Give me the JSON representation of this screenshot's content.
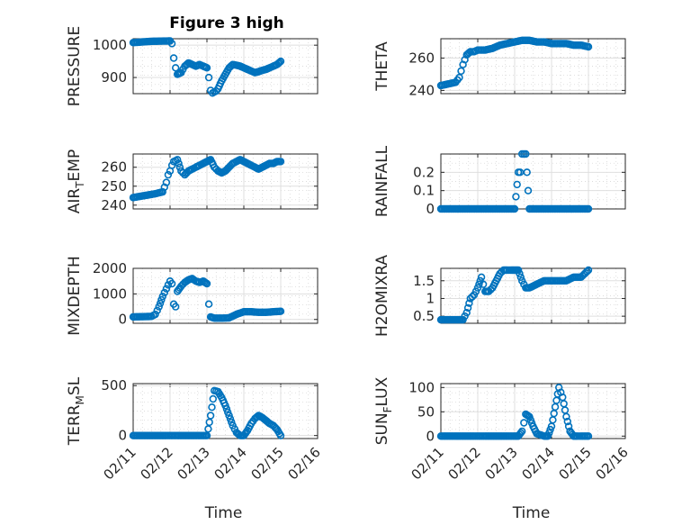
{
  "figure_title": "Figure 3 high",
  "colors": {
    "marker": "#0072bd",
    "axes": "#262626",
    "grid": "#dfdfdf"
  },
  "chart_data": [
    {
      "id": "pressure",
      "type": "scatter",
      "marker": "circle",
      "title": "Figure 3 high",
      "ylabel": "PRESSURE",
      "ylabel_sub": "",
      "xlabel": "",
      "xlim": [
        "02/11",
        "02/15"
      ],
      "ylim": [
        850,
        1020
      ],
      "yticks": [
        900,
        1000
      ],
      "ytick_labels": [
        "900",
        "1000"
      ],
      "xtick_labels": [],
      "grid": true,
      "x_days": [
        0,
        0.5,
        1.0,
        1.05,
        1.1,
        1.15,
        1.2,
        1.3,
        1.4,
        1.5,
        1.6,
        1.7,
        1.8,
        1.9,
        2.0,
        2.05,
        2.1,
        2.15,
        2.2,
        2.25,
        2.3,
        2.4,
        2.5,
        2.6,
        2.7,
        2.8,
        2.9,
        3.0,
        3.1,
        3.2,
        3.3,
        3.4,
        3.5,
        3.6,
        3.7,
        3.8,
        3.9,
        4.0
      ],
      "y": [
        1008,
        1012,
        1013,
        1005,
        960,
        930,
        910,
        915,
        935,
        945,
        940,
        935,
        940,
        935,
        930,
        900,
        860,
        852,
        855,
        858,
        865,
        890,
        910,
        930,
        940,
        938,
        935,
        930,
        925,
        920,
        915,
        918,
        922,
        925,
        930,
        935,
        940,
        950
      ]
    },
    {
      "id": "theta",
      "type": "scatter",
      "marker": "circle",
      "title": "",
      "ylabel": "THETA",
      "ylabel_sub": "",
      "xlabel": "",
      "xlim": [
        "02/11",
        "02/15"
      ],
      "ylim": [
        238,
        272
      ],
      "yticks": [
        240,
        260
      ],
      "ytick_labels": [
        "240",
        "260"
      ],
      "xtick_labels": [],
      "grid": true,
      "x_days": [
        0,
        0.2,
        0.4,
        0.5,
        0.55,
        0.6,
        0.65,
        0.7,
        0.8,
        0.9,
        1.0,
        1.2,
        1.4,
        1.6,
        1.8,
        2.0,
        2.2,
        2.4,
        2.6,
        2.8,
        3.0,
        3.2,
        3.4,
        3.6,
        3.8,
        4.0
      ],
      "y": [
        243,
        244,
        245,
        248,
        252,
        256,
        259,
        262,
        264,
        264,
        265,
        265,
        266,
        268,
        269,
        270,
        271,
        271,
        270,
        270,
        269,
        269,
        269,
        268,
        268,
        267
      ]
    },
    {
      "id": "airtemp",
      "type": "scatter",
      "marker": "circle",
      "title": "",
      "ylabel": "AIR",
      "ylabel_sub": "T",
      "ylabel_rest": "EMP",
      "xlabel": "",
      "xlim": [
        "02/11",
        "02/15"
      ],
      "ylim": [
        238,
        267
      ],
      "yticks": [
        240,
        250,
        260
      ],
      "ytick_labels": [
        "240",
        "250",
        "260"
      ],
      "xtick_labels": [],
      "grid": true,
      "x_days": [
        0,
        0.3,
        0.6,
        0.8,
        0.9,
        0.95,
        1.0,
        1.05,
        1.1,
        1.2,
        1.3,
        1.4,
        1.5,
        1.6,
        1.7,
        1.8,
        1.9,
        2.0,
        2.1,
        2.2,
        2.3,
        2.4,
        2.5,
        2.6,
        2.7,
        2.8,
        2.9,
        3.0,
        3.1,
        3.2,
        3.3,
        3.4,
        3.5,
        3.6,
        3.7,
        3.8,
        3.9,
        4.0
      ],
      "y": [
        244,
        245,
        246,
        247,
        252,
        256,
        258,
        261,
        263,
        264,
        258,
        256,
        258,
        259,
        260,
        261,
        262,
        263,
        264,
        260,
        258,
        257,
        258,
        260,
        262,
        263,
        264,
        263,
        262,
        261,
        260,
        259,
        260,
        261,
        262,
        262,
        263,
        263
      ]
    },
    {
      "id": "rainfall",
      "type": "scatter",
      "marker": "circle",
      "title": "",
      "ylabel": "RAINFALL",
      "ylabel_sub": "",
      "xlabel": "",
      "xlim": [
        "02/11",
        "02/15"
      ],
      "ylim": [
        0,
        0.3
      ],
      "yticks": [
        0,
        0.1,
        0.2
      ],
      "ytick_labels": [
        "0",
        "0.1",
        "0.2"
      ],
      "xtick_labels": [],
      "grid": true,
      "x_days": [
        0,
        0.2,
        0.4,
        0.6,
        0.8,
        1.0,
        1.2,
        1.4,
        1.6,
        1.8,
        2.0,
        2.1,
        2.15,
        2.2,
        2.25,
        2.3,
        2.4,
        2.6,
        2.8,
        3.0,
        3.2,
        3.4,
        3.6,
        3.8,
        4.0
      ],
      "y": [
        0,
        0,
        0,
        0,
        0,
        0,
        0,
        0,
        0,
        0,
        0,
        0.2,
        0.2,
        0.3,
        0.3,
        0.3,
        0,
        0,
        0,
        0,
        0,
        0,
        0,
        0,
        0
      ]
    },
    {
      "id": "mixdepth",
      "type": "scatter",
      "marker": "circle",
      "title": "",
      "ylabel": "MIXDEPTH",
      "ylabel_sub": "",
      "xlabel": "",
      "xlim": [
        "02/11",
        "02/15"
      ],
      "ylim": [
        -150,
        2000
      ],
      "yticks": [
        0,
        1000,
        2000
      ],
      "ytick_labels": [
        "0",
        "1000",
        "2000"
      ],
      "xtick_labels": [],
      "grid": true,
      "x_days": [
        0,
        0.3,
        0.5,
        0.6,
        0.7,
        0.8,
        0.9,
        1.0,
        1.05,
        1.1,
        1.15,
        1.2,
        1.3,
        1.4,
        1.5,
        1.6,
        1.7,
        1.8,
        1.9,
        2.0,
        2.05,
        2.1,
        2.2,
        2.4,
        2.6,
        2.8,
        3.0,
        3.2,
        3.4,
        3.6,
        3.8,
        4.0
      ],
      "y": [
        100,
        110,
        120,
        200,
        500,
        900,
        1200,
        1500,
        1400,
        600,
        500,
        1100,
        1300,
        1450,
        1550,
        1600,
        1500,
        1450,
        1500,
        1400,
        600,
        100,
        50,
        50,
        60,
        200,
        300,
        300,
        280,
        280,
        300,
        320
      ]
    },
    {
      "id": "h2omixra",
      "type": "scatter",
      "marker": "circle",
      "title": "",
      "ylabel": "H2OMIXRA",
      "ylabel_sub": "",
      "xlabel": "",
      "xlim": [
        "02/11",
        "02/15"
      ],
      "ylim": [
        0.3,
        1.85
      ],
      "yticks": [
        0.5,
        1,
        1.5
      ],
      "ytick_labels": [
        "0.5",
        "1",
        "1.5"
      ],
      "xtick_labels": [],
      "grid": true,
      "x_days": [
        0,
        0.3,
        0.6,
        0.7,
        0.8,
        0.9,
        1.0,
        1.1,
        1.2,
        1.3,
        1.4,
        1.5,
        1.6,
        1.7,
        1.8,
        1.9,
        2.0,
        2.1,
        2.2,
        2.3,
        2.4,
        2.6,
        2.8,
        3.0,
        3.2,
        3.4,
        3.6,
        3.8,
        4.0
      ],
      "y": [
        0.4,
        0.4,
        0.4,
        0.6,
        1.0,
        1.1,
        1.3,
        1.6,
        1.2,
        1.2,
        1.3,
        1.5,
        1.7,
        1.8,
        1.8,
        1.8,
        1.8,
        1.8,
        1.5,
        1.3,
        1.3,
        1.4,
        1.5,
        1.5,
        1.5,
        1.5,
        1.6,
        1.6,
        1.8
      ]
    },
    {
      "id": "terrmsl",
      "type": "scatter",
      "marker": "circle",
      "title": "",
      "ylabel": "TERR",
      "ylabel_sub": "M",
      "ylabel_rest": "SL",
      "xlabel": "Time",
      "xlim": [
        "02/11",
        "02/16"
      ],
      "ylim": [
        -30,
        520
      ],
      "yticks": [
        0,
        500
      ],
      "ytick_labels": [
        "0",
        "500"
      ],
      "xtick_labels": [
        "02/11",
        "02/12",
        "02/13",
        "02/14",
        "02/15",
        "02/16"
      ],
      "grid": true,
      "x_days": [
        0,
        0.3,
        0.6,
        0.9,
        1.2,
        1.5,
        1.8,
        2.0,
        2.1,
        2.2,
        2.3,
        2.4,
        2.5,
        2.6,
        2.7,
        2.8,
        2.9,
        3.0,
        3.1,
        3.2,
        3.3,
        3.4,
        3.5,
        3.6,
        3.7,
        3.8,
        3.9,
        4.0
      ],
      "y": [
        0,
        0,
        0,
        0,
        0,
        0,
        0,
        0,
        200,
        450,
        440,
        380,
        300,
        200,
        100,
        30,
        0,
        0,
        50,
        120,
        170,
        200,
        180,
        150,
        120,
        100,
        60,
        0
      ]
    },
    {
      "id": "sunflux",
      "type": "scatter",
      "marker": "circle",
      "title": "",
      "ylabel": "SUN",
      "ylabel_sub": "F",
      "ylabel_rest": "LUX",
      "xlabel": "Time",
      "xlim": [
        "02/11",
        "02/16"
      ],
      "ylim": [
        -5,
        108
      ],
      "yticks": [
        0,
        50,
        100
      ],
      "ytick_labels": [
        "0",
        "50",
        "100"
      ],
      "xtick_labels": [
        "02/11",
        "02/12",
        "02/13",
        "02/14",
        "02/15",
        "02/16"
      ],
      "grid": true,
      "x_days": [
        0,
        0.3,
        0.6,
        0.9,
        1.2,
        1.5,
        1.8,
        2.0,
        2.1,
        2.2,
        2.3,
        2.4,
        2.5,
        2.6,
        2.8,
        2.9,
        3.0,
        3.1,
        3.2,
        3.3,
        3.4,
        3.5,
        3.6,
        3.7,
        3.8,
        4.0
      ],
      "y": [
        0,
        0,
        0,
        0,
        0,
        0,
        0,
        0,
        0,
        10,
        45,
        40,
        20,
        5,
        0,
        0,
        20,
        60,
        100,
        80,
        40,
        10,
        0,
        0,
        0,
        0
      ]
    }
  ]
}
